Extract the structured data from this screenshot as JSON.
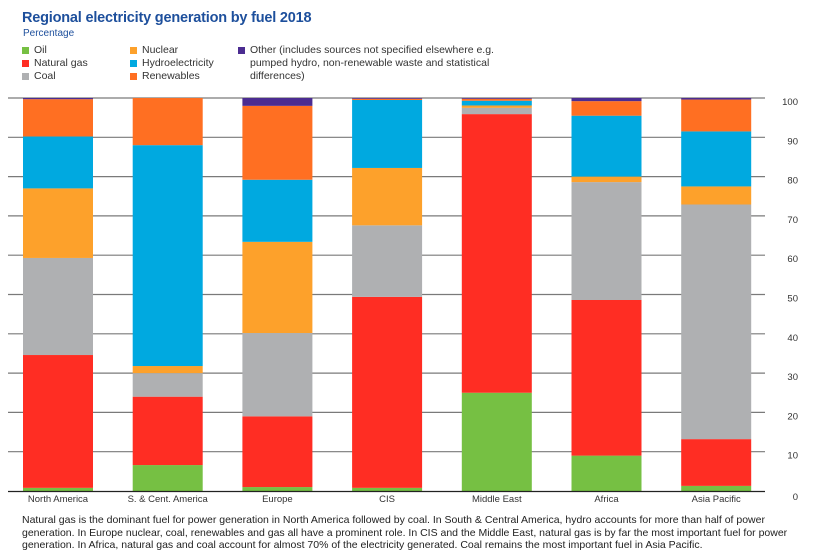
{
  "chart_data": {
    "type": "bar",
    "stacked": true,
    "title": "Regional electricity generation by fuel 2018",
    "subtitle": "Percentage",
    "xlabel": "",
    "ylabel": "Percentage",
    "ylim": [
      0,
      100
    ],
    "yticks": [
      0,
      10,
      20,
      30,
      40,
      50,
      60,
      70,
      80,
      90,
      100
    ],
    "grid": true,
    "y_axis_side": "right",
    "legend_position": "top-left",
    "categories": [
      "North America",
      "S. & Cent. America",
      "Europe",
      "CIS",
      "Middle East",
      "Africa",
      "Asia Pacific"
    ],
    "series": [
      {
        "name": "Oil",
        "color": "#76c043",
        "values": [
          0.8,
          6.6,
          1.0,
          0.8,
          25.0,
          9.0,
          1.3
        ]
      },
      {
        "name": "Natural gas",
        "color": "#ff2d23",
        "values": [
          33.8,
          17.4,
          18.0,
          48.6,
          70.9,
          39.6,
          11.9
        ]
      },
      {
        "name": "Coal",
        "color": "#afb0b2",
        "values": [
          24.7,
          6.0,
          21.2,
          18.2,
          1.6,
          30.0,
          59.7
        ]
      },
      {
        "name": "Nuclear",
        "color": "#fda12b",
        "values": [
          17.7,
          1.8,
          23.2,
          14.6,
          0.6,
          1.4,
          4.6
        ]
      },
      {
        "name": "Hydroelectricity",
        "color": "#00a9e0",
        "values": [
          13.2,
          56.2,
          15.8,
          17.3,
          1.2,
          15.5,
          14.0
        ]
      },
      {
        "name": "Renewables",
        "color": "#ff6f22",
        "values": [
          9.5,
          12.0,
          18.8,
          0.3,
          0.5,
          3.7,
          8.1
        ]
      },
      {
        "name": "Other (includes sources not specified elsewhere e.g. pumped hydro, non-renewable waste and statistical differences)",
        "color": "#4b2c91",
        "values": [
          0.3,
          0.0,
          2.0,
          0.2,
          0.2,
          0.8,
          0.4
        ]
      }
    ]
  },
  "legend": {
    "oil": "Oil",
    "gas": "Natural gas",
    "coal": "Coal",
    "nuclear": "Nuclear",
    "hydro": "Hydroelectricity",
    "renewables": "Renewables",
    "other": "Other (includes sources not specified elsewhere e.g. pumped hydro, non-renewable waste and statistical differences)"
  },
  "caption": "Natural gas is the dominant fuel for power generation in North America followed by coal. In South & Central America, hydro accounts for more than half of power generation. In Europe nuclear, coal, renewables and gas all have a prominent role. In CIS and the Middle East, natural gas is by far the most important fuel for power generation. In Africa, natural gas and coal account for almost 70% of the electricity generated. Coal remains the most important fuel in Asia Pacific."
}
